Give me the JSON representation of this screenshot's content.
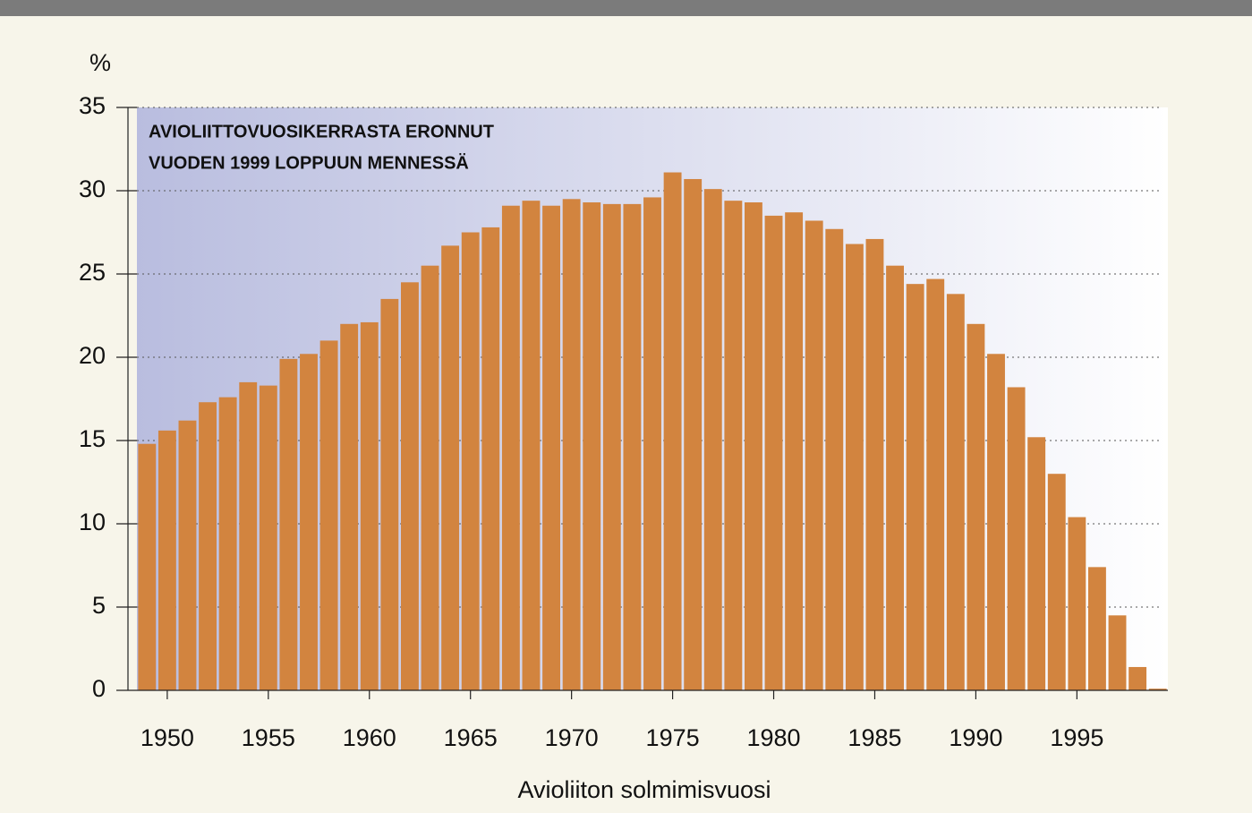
{
  "chart_data": {
    "type": "bar",
    "title": [
      "AVIOLIITTOVUOSIKERRASTA ERONNUT",
      "VUODEN 1999 LOPPUUN MENNESSÄ"
    ],
    "y_label": "%",
    "x_label": "Avioliiton solmimisvuosi",
    "x": [
      1949,
      1950,
      1951,
      1952,
      1953,
      1954,
      1955,
      1956,
      1957,
      1958,
      1959,
      1960,
      1961,
      1962,
      1963,
      1964,
      1965,
      1966,
      1967,
      1968,
      1969,
      1970,
      1971,
      1972,
      1973,
      1974,
      1975,
      1976,
      1977,
      1978,
      1979,
      1980,
      1981,
      1982,
      1983,
      1984,
      1985,
      1986,
      1987,
      1988,
      1989,
      1990,
      1991,
      1992,
      1993,
      1994,
      1995,
      1996,
      1997,
      1998,
      1999
    ],
    "values": [
      14.8,
      15.6,
      16.2,
      17.3,
      17.6,
      18.5,
      18.3,
      19.9,
      20.2,
      21.0,
      22.0,
      22.1,
      23.5,
      24.5,
      25.5,
      26.7,
      27.5,
      27.8,
      29.1,
      29.4,
      29.1,
      29.5,
      29.3,
      29.2,
      29.2,
      29.6,
      31.1,
      30.7,
      30.1,
      29.4,
      29.3,
      28.5,
      28.7,
      28.2,
      27.7,
      26.8,
      27.1,
      25.5,
      24.4,
      24.7,
      23.8,
      22.0,
      20.2,
      18.2,
      15.2,
      13.0,
      10.4,
      7.4,
      4.5,
      1.4,
      0.1
    ],
    "color": "#d2843f",
    "xlim": [
      1948.5,
      1999.5
    ],
    "xticks": [
      1950,
      1955,
      1960,
      1965,
      1970,
      1975,
      1980,
      1985,
      1990,
      1995
    ],
    "ylim": [
      0,
      35
    ],
    "yticks": [
      0,
      5,
      10,
      15,
      20,
      25,
      30,
      35
    ],
    "grid": true
  }
}
